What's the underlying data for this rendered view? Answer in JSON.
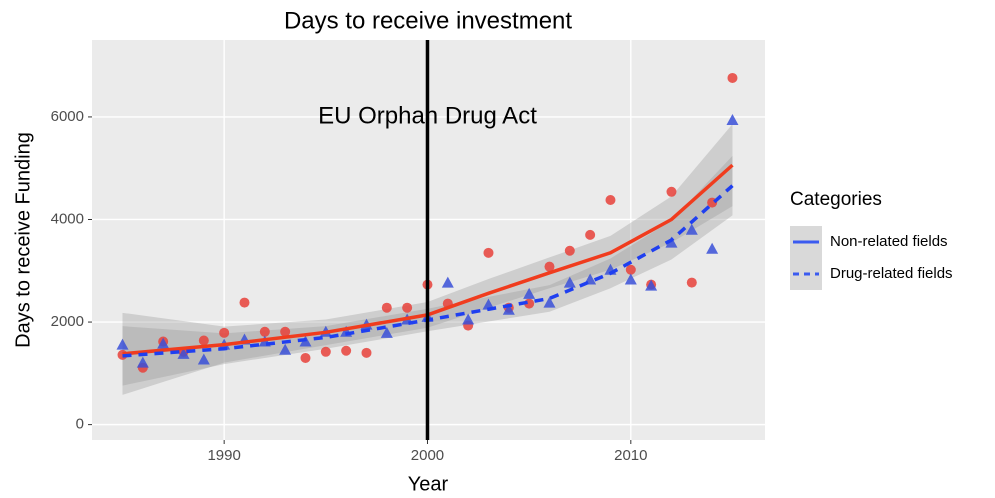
{
  "chart_data": {
    "type": "scatter",
    "title": "Days to receive investment",
    "xlabel": "Year",
    "ylabel": "Days to receive Funding",
    "xlim": [
      1983.5,
      2016.6
    ],
    "ylim": [
      -300,
      7500
    ],
    "xticks": [
      1990,
      2000,
      2010
    ],
    "yticks": [
      0,
      2000,
      4000,
      6000
    ],
    "grid": true,
    "vline": 2000,
    "annotation": {
      "text": "EU Orphan Drug Act",
      "x": 2000,
      "y": 6000
    },
    "legend": {
      "title": "Categories",
      "position": "right",
      "color": "#3b5bf0"
    },
    "x": [
      1985,
      1986,
      1987,
      1988,
      1989,
      1990,
      1991,
      1992,
      1993,
      1994,
      1995,
      1996,
      1997,
      1998,
      1999,
      2000,
      2001,
      2002,
      2003,
      2004,
      2005,
      2006,
      2007,
      2008,
      2009,
      2010,
      2011,
      2012,
      2013,
      2014,
      2015
    ],
    "trend_x": [
      1985,
      1990,
      1995,
      2000,
      2003,
      2006,
      2009,
      2012,
      2015
    ],
    "series": [
      {
        "name": "Non-related fields",
        "color": "#e8413a",
        "line_color": "#f03c1e",
        "marker": "circle",
        "dash": false,
        "values": [
          1360,
          1110,
          1620,
          1420,
          1640,
          1790,
          2380,
          1810,
          1810,
          1300,
          1420,
          1440,
          1400,
          2280,
          2280,
          2730,
          2360,
          1930,
          3350,
          2280,
          2360,
          3080,
          3390,
          3700,
          4380,
          3020,
          2730,
          4540,
          2770,
          4330,
          6760
        ],
        "trend": [
          1380,
          1560,
          1800,
          2140,
          2560,
          2960,
          3350,
          4000,
          5060
        ],
        "trend_lower": [
          580,
          1210,
          1550,
          1890,
          2280,
          2660,
          3020,
          3550,
          4260
        ],
        "trend_upper": [
          2180,
          1910,
          2050,
          2390,
          2840,
          3260,
          3680,
          4450,
          5860
        ]
      },
      {
        "name": "Drug-related fields",
        "color": "#3a50d8",
        "line_color": "#1f3ff0",
        "marker": "triangle",
        "dash": true,
        "values": [
          1560,
          1210,
          1580,
          1380,
          1270,
          1560,
          1660,
          1620,
          1460,
          1620,
          1810,
          1810,
          1950,
          1790,
          2050,
          2100,
          2770,
          2050,
          2340,
          2240,
          2550,
          2380,
          2770,
          2830,
          3020,
          2830,
          2710,
          3550,
          3800,
          3430,
          5940
        ],
        "trend": [
          1340,
          1480,
          1700,
          2040,
          2250,
          2460,
          2950,
          3600,
          4660
        ],
        "trend_lower": [
          760,
          1180,
          1480,
          1820,
          2010,
          2200,
          2660,
          3220,
          4080
        ],
        "trend_upper": [
          1920,
          1780,
          1920,
          2260,
          2490,
          2720,
          3240,
          3980,
          5240
        ]
      }
    ]
  }
}
